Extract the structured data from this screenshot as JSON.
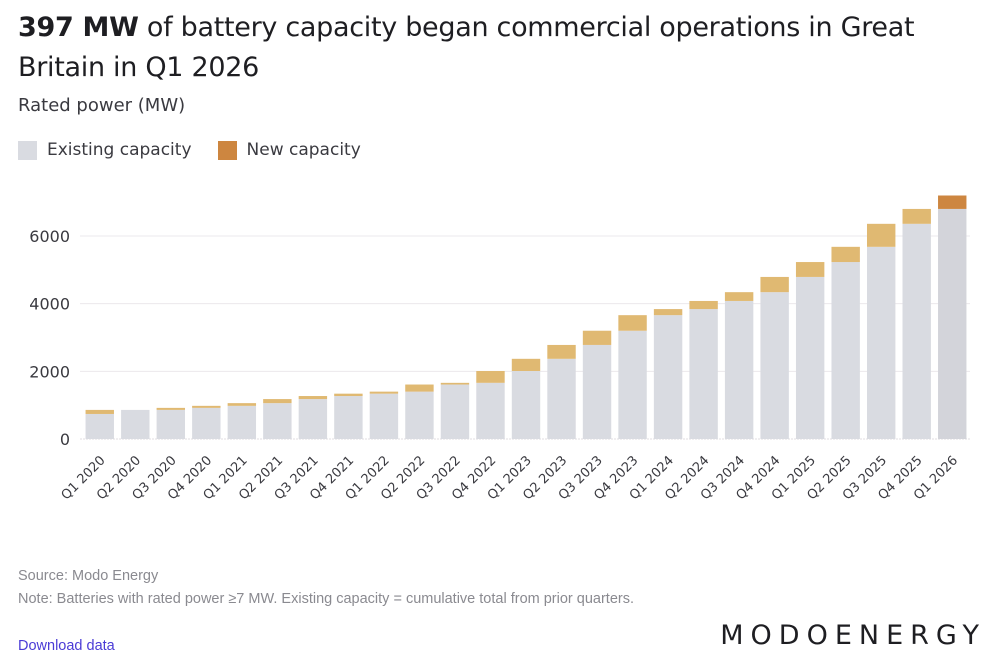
{
  "header": {
    "title_bold": "397 MW",
    "title_rest": " of battery capacity began commercial operations in Great Britain in Q1 2026",
    "subtitle": "Rated power (MW)"
  },
  "legend": [
    {
      "label": "Existing capacity",
      "color": "#d9dbe1"
    },
    {
      "label": "New capacity",
      "color": "#cd8640"
    }
  ],
  "footer": {
    "source": "Source: Modo Energy",
    "note": "Note: Batteries with rated power ≥7 MW. Existing capacity = cumulative total from prior quarters.",
    "download_label": "Download data",
    "logo": "MODOENERGY"
  },
  "colors": {
    "existing": "#d9dbe1",
    "existing_highlight": "#d3d4da",
    "new": "#e0b972",
    "new_highlight": "#cd8640",
    "grid": "#ebe8ec",
    "axis_text": "#3a3a40"
  },
  "chart_data": {
    "type": "bar",
    "stacked": true,
    "title": "397 MW of battery capacity began commercial operations in Great Britain in Q1 2026",
    "ylabel": "Rated power (MW)",
    "xlabel": "",
    "ylim": [
      0,
      7300
    ],
    "yticks": [
      0,
      2000,
      4000,
      6000
    ],
    "ytick_labels": [
      "0",
      "2000",
      "4000",
      "6000"
    ],
    "grid": true,
    "legend_position": "top-left",
    "categories": [
      "Q1 2020",
      "Q2 2020",
      "Q3 2020",
      "Q4 2020",
      "Q1 2021",
      "Q2 2021",
      "Q3 2021",
      "Q4 2021",
      "Q1 2022",
      "Q2 2022",
      "Q3 2022",
      "Q4 2022",
      "Q1 2023",
      "Q2 2023",
      "Q3 2023",
      "Q4 2023",
      "Q1 2024",
      "Q2 2024",
      "Q3 2024",
      "Q4 2024",
      "Q1 2025",
      "Q2 2025",
      "Q3 2025",
      "Q4 2025",
      "Q1 2026"
    ],
    "series": [
      {
        "name": "Existing capacity",
        "values": [
          740,
          860,
          860,
          920,
          980,
          1060,
          1180,
          1270,
          1340,
          1400,
          1610,
          1660,
          2010,
          2370,
          2780,
          3200,
          3660,
          3840,
          4080,
          4340,
          4790,
          5230,
          5680,
          6360,
          6800
        ]
      },
      {
        "name": "New capacity",
        "values": [
          120,
          0,
          60,
          60,
          80,
          120,
          90,
          70,
          60,
          210,
          50,
          350,
          360,
          410,
          420,
          460,
          180,
          240,
          260,
          450,
          440,
          450,
          680,
          440,
          397
        ]
      }
    ],
    "highlight_category": "Q1 2026"
  }
}
